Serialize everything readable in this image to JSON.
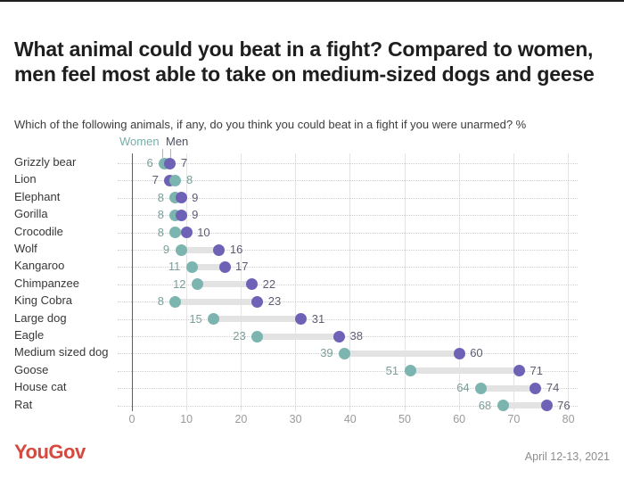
{
  "page": {
    "title": "What animal could you beat in a fight? Compared to women, men feel most able to take on medium-sized dogs and geese",
    "subtitle": "Which of the following animals, if any, do you think you could beat in a fight if you were unarmed? %"
  },
  "chart_data": {
    "type": "dumbbell-dot",
    "title": "What animal could you beat in a fight? Compared to women, men feel most able to take on medium-sized dogs and geese",
    "subtitle": "Which of the following animals, if any, do you think you could beat in a fight if you were unarmed? %",
    "categories": [
      "Grizzly bear",
      "Lion",
      "Elephant",
      "Gorilla",
      "Crocodile",
      "Wolf",
      "Kangaroo",
      "Chimpanzee",
      "King Cobra",
      "Large dog",
      "Eagle",
      "Medium sized dog",
      "Goose",
      "House cat",
      "Rat"
    ],
    "series": [
      {
        "name": "Women",
        "dot_color": "#7cb5af",
        "value_label_color": "#7c9d99",
        "legend_text_color": "#79aea8",
        "values": [
          6,
          8,
          8,
          8,
          8,
          9,
          11,
          12,
          8,
          15,
          23,
          39,
          51,
          64,
          68
        ]
      },
      {
        "name": "Men",
        "dot_color": "#6e62b6",
        "value_label_color": "#5d5d72",
        "legend_text_color": "#4c4f63",
        "values": [
          7,
          7,
          9,
          9,
          10,
          16,
          17,
          22,
          23,
          31,
          38,
          60,
          71,
          74,
          76
        ]
      }
    ],
    "xlim": [
      0,
      80
    ],
    "xticks": [
      0,
      10,
      20,
      30,
      40,
      50,
      60,
      70,
      80
    ],
    "grid": "vertical-light, dotted-row-lines",
    "legend_position": "top-left-above-first-row",
    "connector_color": "#e3e3e3"
  },
  "footer": {
    "logo": "YouGov",
    "date": "April 12-13, 2021"
  }
}
